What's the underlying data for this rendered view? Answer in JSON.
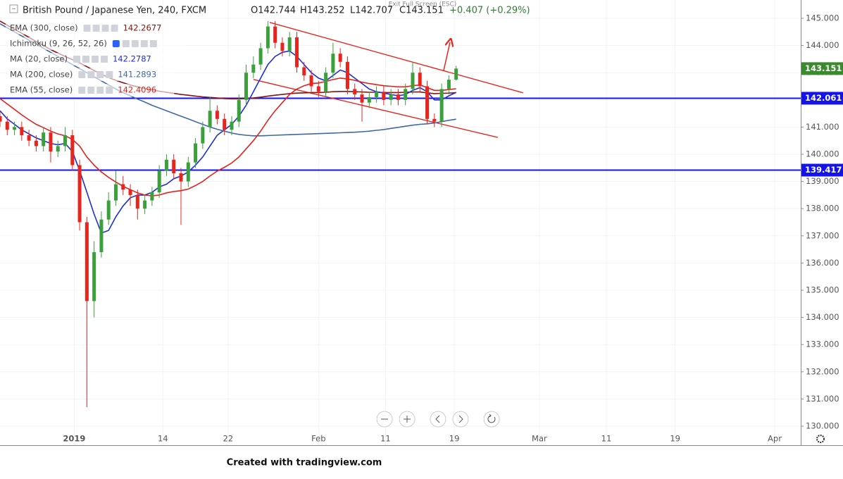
{
  "chart_data": {
    "type": "candlestick",
    "symbol": "British Pound / Japanese Yen, 240, FXCM",
    "ohlc_text": [
      "O142.744",
      "H143.252",
      "L142.707",
      "C143.151"
    ],
    "change": "+0.407 (+0.29%)",
    "exit_fullscreen": "Exit Full Screen (ESC)",
    "footer": "Created with tradingview.com",
    "ichimoku_label": "Ichimoku (9, 26, 52, 26)",
    "up_color": "#3aa13a",
    "down_color": "#e8251d",
    "grid": true,
    "xlim": [
      0,
      442.4
    ],
    "ylim": [
      129.87,
      145.674
    ],
    "yticks": [
      {
        "value": 130,
        "label": "130.000"
      },
      {
        "value": 131,
        "label": "131.000"
      },
      {
        "value": 132,
        "label": "132.000"
      },
      {
        "value": 133,
        "label": "133.000"
      },
      {
        "value": 134,
        "label": "134.000"
      },
      {
        "value": 135,
        "label": "135.000"
      },
      {
        "value": 136,
        "label": "136.000"
      },
      {
        "value": 137,
        "label": "137.000"
      },
      {
        "value": 138,
        "label": "138.000"
      },
      {
        "value": 139,
        "label": "139.000"
      },
      {
        "value": 140,
        "label": "140.000"
      },
      {
        "value": 141,
        "label": "141.000"
      },
      {
        "value": 142,
        "label": "142.000"
      },
      {
        "value": 143,
        "label": "143.000"
      },
      {
        "value": 144,
        "label": "144.000"
      },
      {
        "value": 145,
        "label": "145.000"
      }
    ],
    "xticks": [
      {
        "value": 41,
        "label": "2019"
      },
      {
        "value": 90,
        "label": "14"
      },
      {
        "value": 126,
        "label": "22"
      },
      {
        "value": 176,
        "label": "Feb"
      },
      {
        "value": 213,
        "label": "11"
      },
      {
        "value": 251,
        "label": "19"
      },
      {
        "value": 298,
        "label": "Mar"
      },
      {
        "value": 335,
        "label": "11"
      },
      {
        "value": 373,
        "label": "19"
      },
      {
        "value": 428,
        "label": "Apr"
      }
    ],
    "x": [
      0,
      4,
      8,
      12,
      16,
      20,
      24,
      28,
      32,
      36,
      40,
      44,
      48,
      52,
      56,
      60,
      64,
      68,
      72,
      76,
      80,
      84,
      88,
      92,
      96,
      100,
      104,
      108,
      112,
      116,
      120,
      124,
      128,
      132,
      136,
      140,
      144,
      148,
      152,
      156,
      160,
      164,
      168,
      172,
      176,
      180,
      184,
      188,
      192,
      196,
      200,
      204,
      208,
      212,
      216,
      220,
      224,
      228,
      232,
      236,
      240,
      244,
      248,
      252
    ],
    "open": [
      141.4,
      141.2,
      140.9,
      141.0,
      140.7,
      140.5,
      140.3,
      140.8,
      140.1,
      140.3,
      140.7,
      139.6,
      137.5,
      134.6,
      136.4,
      137.6,
      138.3,
      138.9,
      138.7,
      138.5,
      138.0,
      138.3,
      138.6,
      139.4,
      139.8,
      139.3,
      139.0,
      139.7,
      140.4,
      141.0,
      141.6,
      141.3,
      140.9,
      141.2,
      142.0,
      143.0,
      143.3,
      143.9,
      144.7,
      144.1,
      143.8,
      144.3,
      143.2,
      142.9,
      142.5,
      142.3,
      143.0,
      143.7,
      143.4,
      142.4,
      142.2,
      141.9,
      142.1,
      142.3,
      142.0,
      142.2,
      142.0,
      142.4,
      143.0,
      142.5,
      141.3,
      141.2,
      142.4,
      142.744
    ],
    "high": [
      141.6,
      141.4,
      141.2,
      141.2,
      140.9,
      140.7,
      141.0,
      141.0,
      140.5,
      141.0,
      140.9,
      139.8,
      137.7,
      136.8,
      137.9,
      138.6,
      139.4,
      139.2,
      138.9,
      138.7,
      138.5,
      138.8,
      139.6,
      140.0,
      140.0,
      139.5,
      139.9,
      140.6,
      141.2,
      142.1,
      141.8,
      141.5,
      141.4,
      142.2,
      143.3,
      143.6,
      144.1,
      144.9,
      144.9,
      144.3,
      144.5,
      144.5,
      143.4,
      143.1,
      142.7,
      143.2,
      144.1,
      143.9,
      143.6,
      142.6,
      142.4,
      142.3,
      142.5,
      142.5,
      142.4,
      142.4,
      142.6,
      143.4,
      143.2,
      142.7,
      141.5,
      142.6,
      142.9,
      143.252
    ],
    "low": [
      141.0,
      140.7,
      140.7,
      140.5,
      140.3,
      140.1,
      140.1,
      139.7,
      139.9,
      140.1,
      139.4,
      137.2,
      130.7,
      134.0,
      136.2,
      137.4,
      138.1,
      138.5,
      138.1,
      137.6,
      137.8,
      138.1,
      138.4,
      139.2,
      139.1,
      137.4,
      138.8,
      139.5,
      140.2,
      140.8,
      141.1,
      140.7,
      140.7,
      141.0,
      141.8,
      142.8,
      143.1,
      143.7,
      143.9,
      143.6,
      143.6,
      143.0,
      142.7,
      142.3,
      142.1,
      142.1,
      142.8,
      143.2,
      142.2,
      142.0,
      141.2,
      141.7,
      141.9,
      141.8,
      141.8,
      141.8,
      141.8,
      142.2,
      142.3,
      141.1,
      141.0,
      141.0,
      142.2,
      142.707
    ],
    "close": [
      141.2,
      140.9,
      141.0,
      140.7,
      140.5,
      140.3,
      140.8,
      140.1,
      140.3,
      140.7,
      139.6,
      137.5,
      134.6,
      136.4,
      137.6,
      138.3,
      138.9,
      138.7,
      138.5,
      138.0,
      138.3,
      138.6,
      139.4,
      139.8,
      139.3,
      139.0,
      139.7,
      140.4,
      141.0,
      141.6,
      141.3,
      140.9,
      141.2,
      142.0,
      143.0,
      143.3,
      143.9,
      144.7,
      144.1,
      143.8,
      144.3,
      143.2,
      142.9,
      142.5,
      142.3,
      143.0,
      143.7,
      143.4,
      142.4,
      142.2,
      141.9,
      142.1,
      142.3,
      142.0,
      142.2,
      142.0,
      142.4,
      143.0,
      142.5,
      141.3,
      141.2,
      142.4,
      142.744,
      143.151
    ],
    "last_price": 143.151,
    "last_price_color": "#3b8a2e",
    "series": [
      {
        "name": "EMA (300, close)",
        "color": "#8b1010",
        "last_value": 142.2677,
        "values": [
          144.9,
          144.75,
          144.6,
          144.45,
          144.3,
          144.15,
          144.0,
          143.85,
          143.72,
          143.6,
          143.48,
          143.36,
          143.22,
          143.08,
          142.95,
          142.82,
          142.72,
          142.63,
          142.55,
          142.48,
          142.42,
          142.37,
          142.32,
          142.28,
          142.24,
          142.2,
          142.17,
          142.14,
          142.11,
          142.09,
          142.07,
          142.05,
          142.04,
          142.04,
          142.05,
          142.07,
          142.1,
          142.14,
          142.17,
          142.2,
          142.23,
          142.25,
          142.26,
          142.27,
          142.27,
          142.28,
          142.3,
          142.31,
          142.31,
          142.3,
          142.29,
          142.28,
          142.28,
          142.27,
          142.27,
          142.27,
          142.28,
          142.29,
          142.29,
          142.26,
          142.23,
          142.24,
          142.25,
          142.2677
        ]
      },
      {
        "name": "MA (20, close)",
        "color": "#1c2fd6",
        "last_value": 142.2787,
        "values": [
          141.6,
          141.3,
          141.1,
          140.9,
          140.75,
          140.6,
          140.5,
          140.4,
          140.35,
          140.4,
          140.1,
          139.4,
          138.6,
          137.8,
          137.1,
          137.2,
          137.7,
          138.1,
          138.4,
          138.5,
          138.5,
          138.6,
          138.8,
          138.9,
          139.1,
          139.2,
          139.35,
          139.6,
          139.9,
          140.3,
          140.7,
          140.9,
          141.1,
          141.4,
          141.8,
          142.3,
          142.8,
          143.3,
          143.6,
          143.75,
          143.8,
          143.6,
          143.3,
          143.0,
          142.8,
          142.7,
          142.9,
          143.1,
          143.0,
          142.8,
          142.6,
          142.4,
          142.3,
          142.25,
          142.2,
          142.15,
          142.2,
          142.35,
          142.45,
          142.3,
          142.0,
          142.0,
          142.15,
          142.2787
        ]
      },
      {
        "name": "MA (200, close)",
        "color": "#3f68a8",
        "last_value": 141.2893,
        "values": [
          144.8,
          144.65,
          144.5,
          144.35,
          144.2,
          144.05,
          143.9,
          143.75,
          143.6,
          143.45,
          143.3,
          143.15,
          143.0,
          142.85,
          142.7,
          142.55,
          142.4,
          142.27,
          142.15,
          142.03,
          141.92,
          141.8,
          141.7,
          141.6,
          141.5,
          141.4,
          141.3,
          141.2,
          141.1,
          141.0,
          140.92,
          140.85,
          140.78,
          140.73,
          140.7,
          140.68,
          140.68,
          140.69,
          140.7,
          140.71,
          140.72,
          140.73,
          140.74,
          140.75,
          140.76,
          140.77,
          140.78,
          140.79,
          140.8,
          140.81,
          140.83,
          140.85,
          140.88,
          140.91,
          140.95,
          140.99,
          141.03,
          141.07,
          141.1,
          141.12,
          141.15,
          141.2,
          141.25,
          141.2893
        ]
      },
      {
        "name": "EMA (55, close)",
        "color": "#e3211c",
        "last_value": 142.4096,
        "values": [
          142.05,
          141.85,
          141.65,
          141.45,
          141.27,
          141.1,
          140.98,
          140.85,
          140.75,
          140.68,
          140.55,
          140.3,
          139.9,
          139.6,
          139.35,
          139.15,
          138.98,
          138.82,
          138.7,
          138.58,
          138.5,
          138.47,
          138.5,
          138.58,
          138.63,
          138.66,
          138.72,
          138.85,
          139.0,
          139.2,
          139.38,
          139.52,
          139.68,
          139.9,
          140.2,
          140.5,
          140.85,
          141.25,
          141.6,
          141.9,
          142.2,
          142.4,
          142.52,
          142.6,
          142.62,
          142.68,
          142.75,
          142.8,
          142.77,
          142.72,
          142.65,
          142.6,
          142.56,
          142.52,
          142.5,
          142.48,
          142.48,
          142.52,
          142.55,
          142.45,
          142.35,
          142.35,
          142.38,
          142.4096
        ]
      }
    ],
    "levels": [
      {
        "value": 142.061,
        "color": "#1414e6"
      },
      {
        "value": 139.417,
        "color": "#1414e6"
      }
    ],
    "trendlines": [
      {
        "x": [
          149,
          289
        ],
        "y": [
          144.85,
          142.26
        ],
        "color": "#e8251d"
      },
      {
        "x": [
          140,
          275
        ],
        "y": [
          142.75,
          140.62
        ],
        "color": "#e8251d"
      }
    ]
  }
}
